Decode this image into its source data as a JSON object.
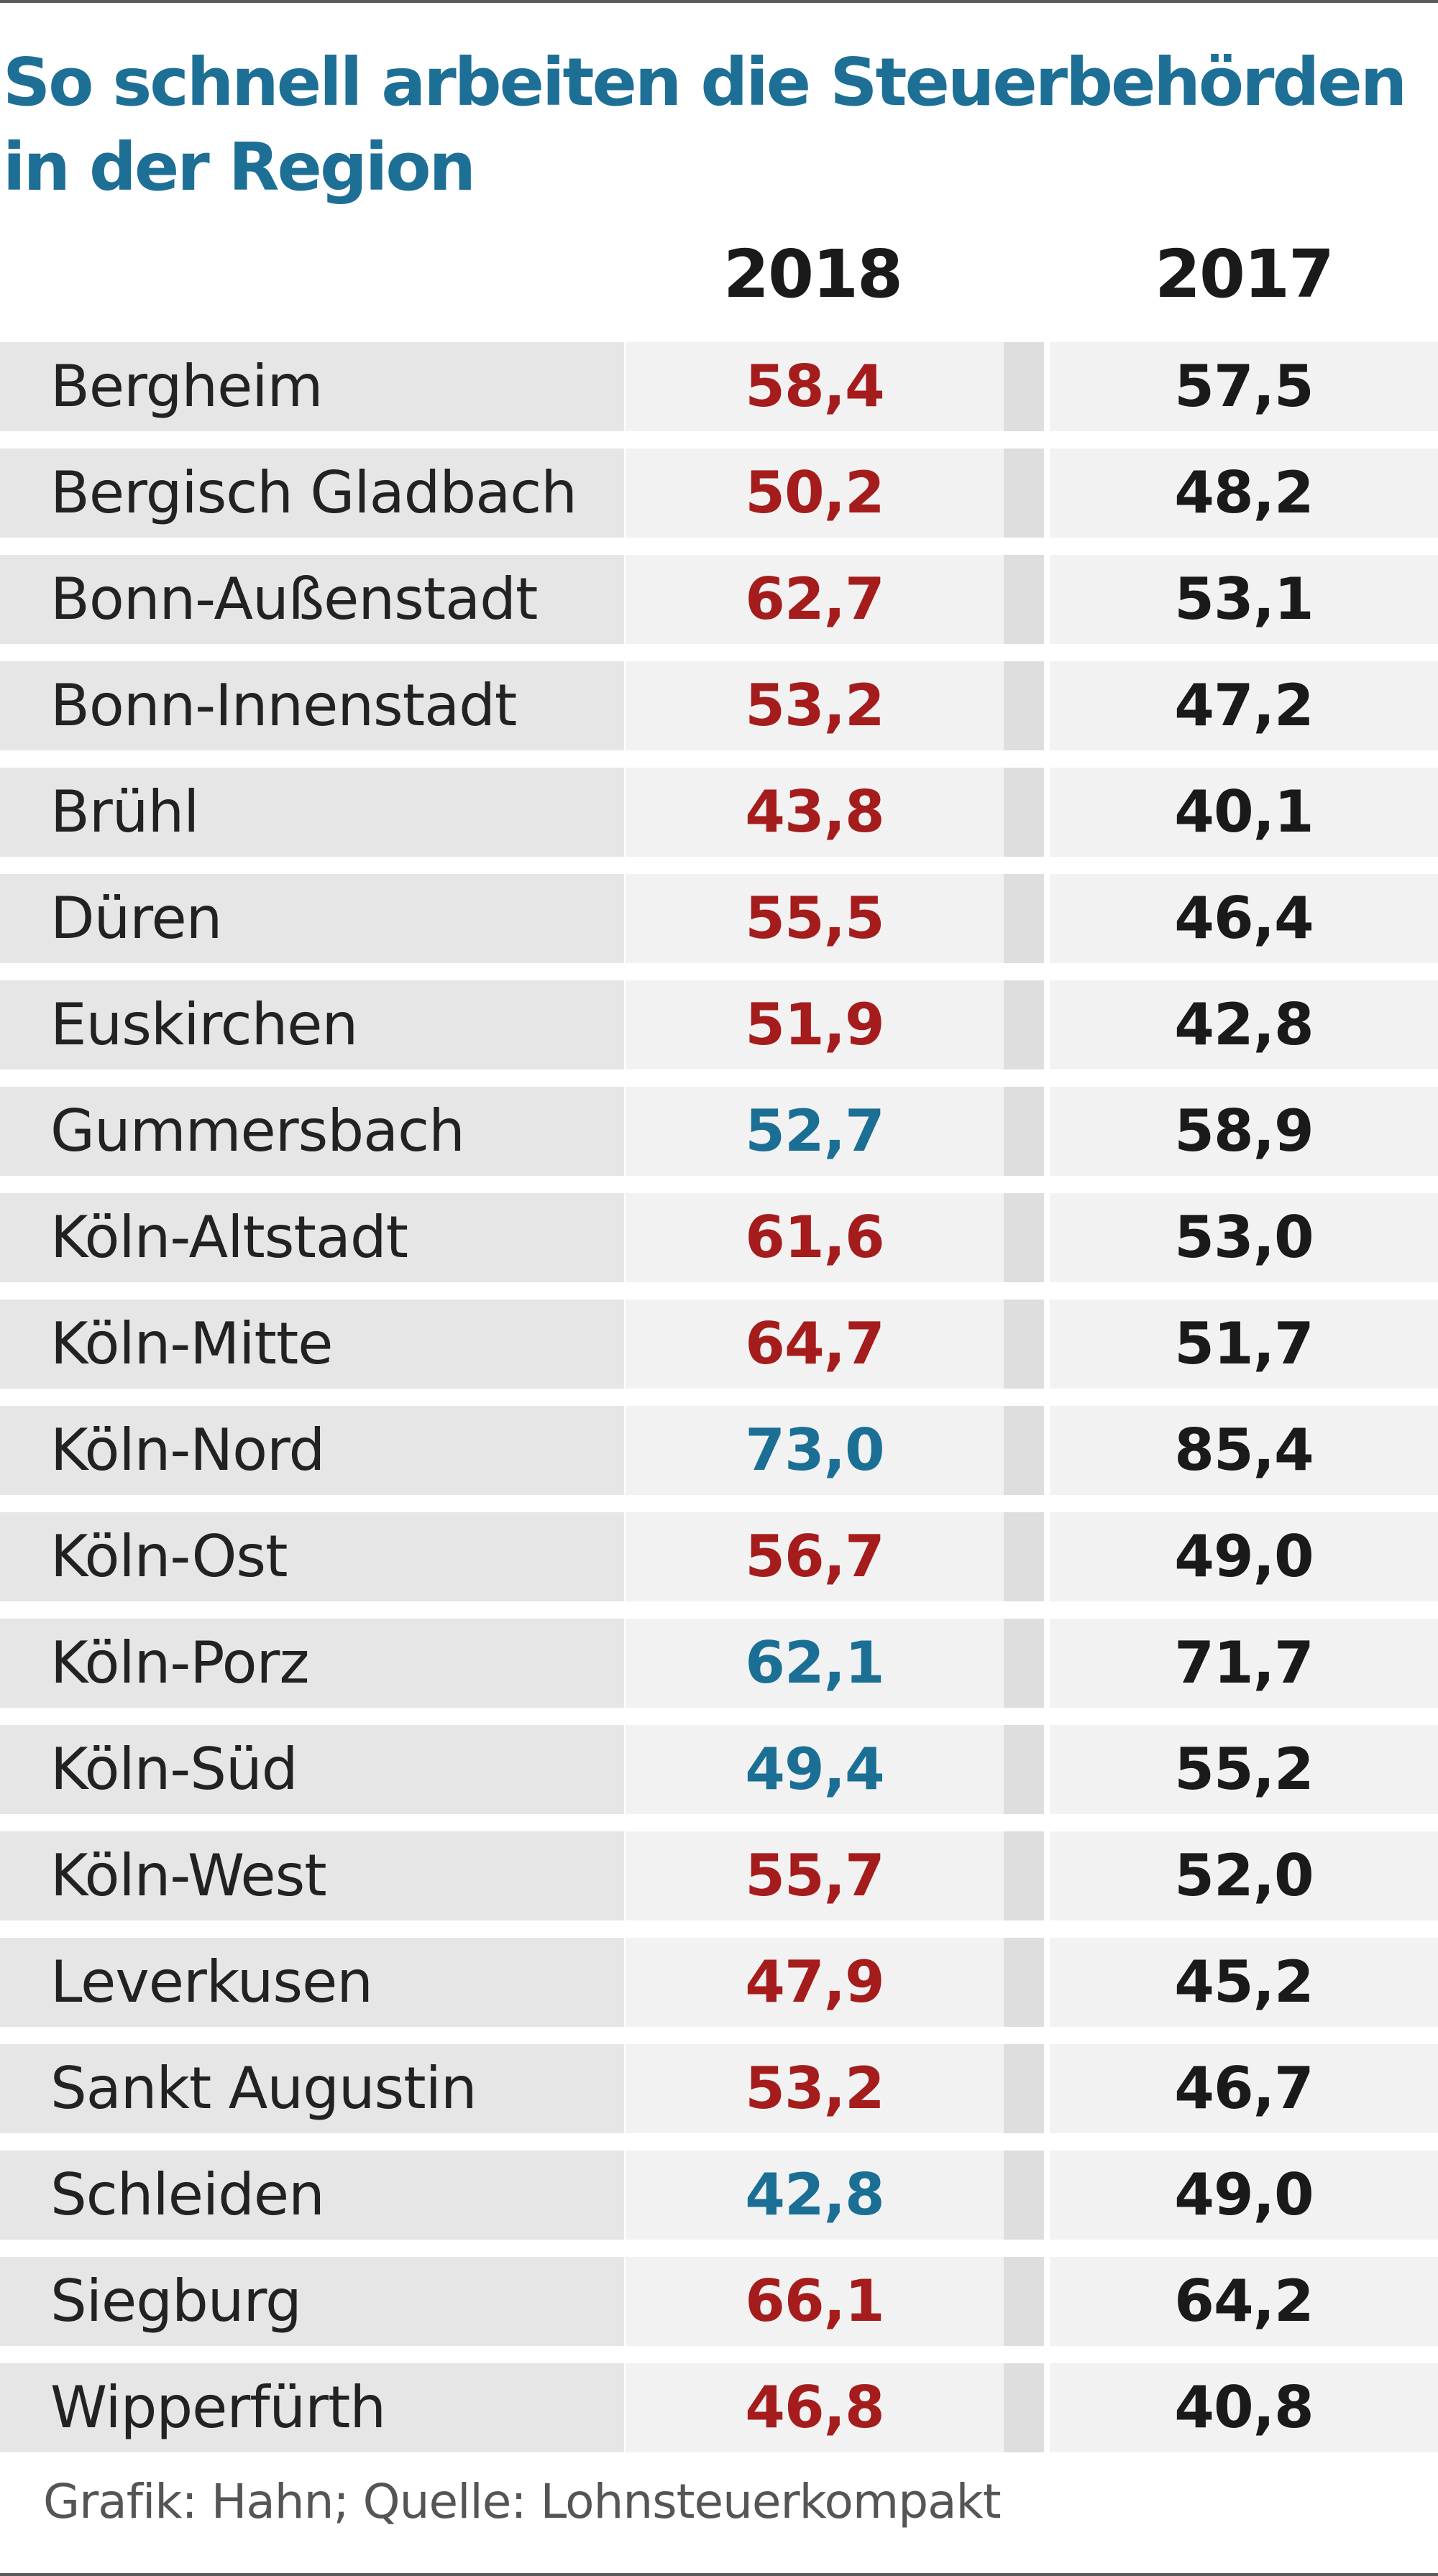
{
  "title_lines": [
    "So schnell arbeiten die Steuerbehörden",
    "in der Region"
  ],
  "source": "Grafik: Hahn; Quelle: Lohnsteuerkompakt",
  "colors": {
    "title": "#1d6f96",
    "higher_than_previous": "#a51c1c",
    "lower_than_previous": "#1b6f95",
    "previous_year_text": "#1a1a1a"
  },
  "chart_data": {
    "type": "table",
    "title": "So schnell arbeiten die Steuerbehörden in der Region",
    "columns": [
      "2018",
      "2017"
    ],
    "rows": [
      {
        "name": "Bergheim",
        "v2018": "58,4",
        "v2017": "57,5",
        "trend": "up"
      },
      {
        "name": "Bergisch Gladbach",
        "v2018": "50,2",
        "v2017": "48,2",
        "trend": "up"
      },
      {
        "name": "Bonn-Außenstadt",
        "v2018": "62,7",
        "v2017": "53,1",
        "trend": "up"
      },
      {
        "name": "Bonn-Innenstadt",
        "v2018": "53,2",
        "v2017": "47,2",
        "trend": "up"
      },
      {
        "name": "Brühl",
        "v2018": "43,8",
        "v2017": "40,1",
        "trend": "up"
      },
      {
        "name": "Düren",
        "v2018": "55,5",
        "v2017": "46,4",
        "trend": "up"
      },
      {
        "name": "Euskirchen",
        "v2018": "51,9",
        "v2017": "42,8",
        "trend": "up"
      },
      {
        "name": "Gummersbach",
        "v2018": "52,7",
        "v2017": "58,9",
        "trend": "down"
      },
      {
        "name": "Köln-Altstadt",
        "v2018": "61,6",
        "v2017": "53,0",
        "trend": "up"
      },
      {
        "name": "Köln-Mitte",
        "v2018": "64,7",
        "v2017": "51,7",
        "trend": "up"
      },
      {
        "name": "Köln-Nord",
        "v2018": "73,0",
        "v2017": "85,4",
        "trend": "down"
      },
      {
        "name": "Köln-Ost",
        "v2018": "56,7",
        "v2017": "49,0",
        "trend": "up"
      },
      {
        "name": "Köln-Porz",
        "v2018": "62,1",
        "v2017": "71,7",
        "trend": "down"
      },
      {
        "name": "Köln-Süd",
        "v2018": "49,4",
        "v2017": "55,2",
        "trend": "down"
      },
      {
        "name": "Köln-West",
        "v2018": "55,7",
        "v2017": "52,0",
        "trend": "up"
      },
      {
        "name": "Leverkusen",
        "v2018": "47,9",
        "v2017": "45,2",
        "trend": "up"
      },
      {
        "name": "Sankt Augustin",
        "v2018": "53,2",
        "v2017": "46,7",
        "trend": "up"
      },
      {
        "name": "Schleiden",
        "v2018": "42,8",
        "v2017": "49,0",
        "trend": "down"
      },
      {
        "name": "Siegburg",
        "v2018": "66,1",
        "v2017": "64,2",
        "trend": "up"
      },
      {
        "name": "Wipperfürth",
        "v2018": "46,8",
        "v2017": "40,8",
        "trend": "up"
      }
    ]
  }
}
